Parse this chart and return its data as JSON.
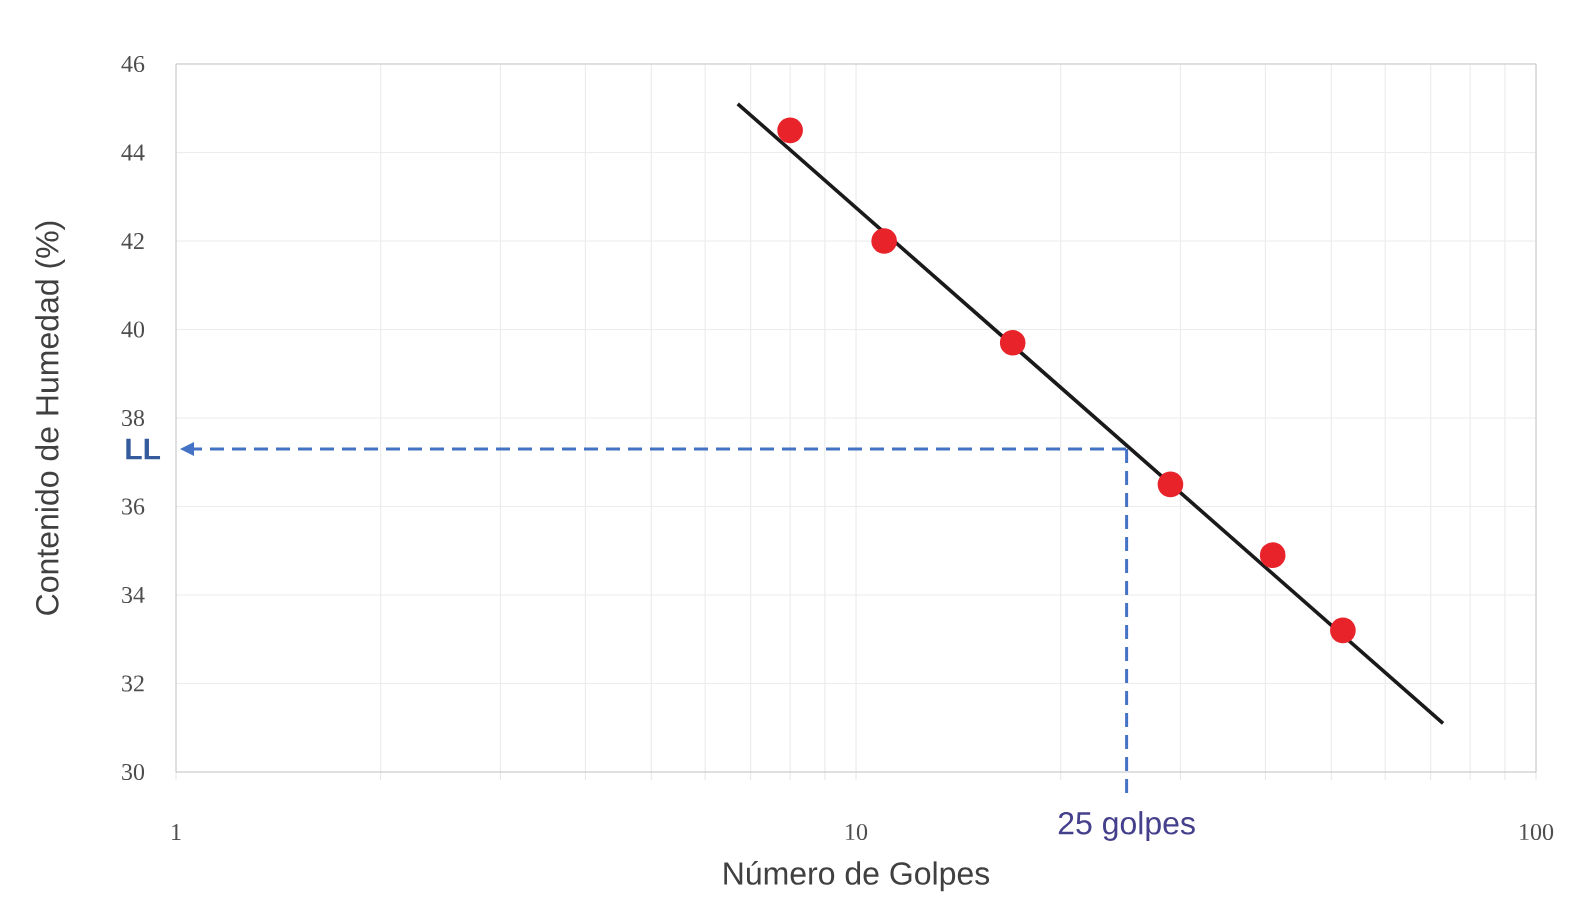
{
  "chart_data": {
    "type": "scatter",
    "xlabel": "Número de Golpes",
    "ylabel": "Contenido de Humedad (%)",
    "log": "x",
    "grid": true,
    "marker": "circle",
    "xlim": [
      1,
      100
    ],
    "xticks": [
      1,
      10,
      100
    ],
    "ylim": [
      30,
      46
    ],
    "yticks": [
      30,
      32,
      34,
      36,
      38,
      40,
      42,
      44,
      46
    ],
    "series": [
      {
        "type": "scatter",
        "color": "#e8232a",
        "x": [
          8,
          11,
          17,
          29,
          41,
          52
        ],
        "values": [
          44.5,
          42.0,
          39.7,
          36.5,
          34.9,
          33.2
        ]
      },
      {
        "type": "line",
        "color": "#1a1a1a",
        "marker": "none",
        "line_style": "solid",
        "x": [
          6.7,
          73
        ],
        "values": [
          45.1,
          31.1
        ]
      }
    ],
    "ref_lines": [
      {
        "axis": "y",
        "value": 37.3,
        "label": "LL",
        "color": "#4472c4",
        "line_style": "dashed"
      },
      {
        "axis": "x",
        "value": 25,
        "label": "25 golpes",
        "color": "#4472c4",
        "line_style": "dashed"
      }
    ]
  }
}
